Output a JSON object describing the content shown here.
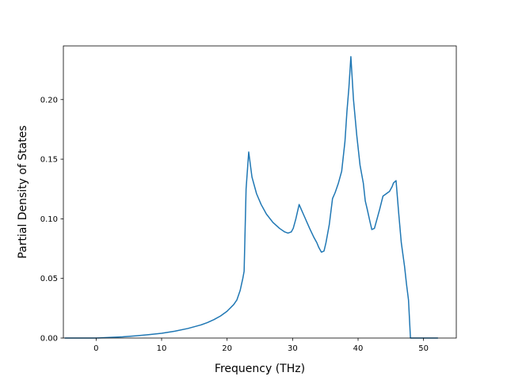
{
  "chart_data": {
    "type": "line",
    "xlabel": "Frequency (THz)",
    "ylabel": "Partial Density of States",
    "xlim": [
      -5,
      55
    ],
    "ylim": [
      0,
      0.245
    ],
    "xticks": [
      0,
      10,
      20,
      30,
      40,
      50
    ],
    "yticks": [
      0.0,
      0.05,
      0.1,
      0.15,
      0.2
    ],
    "xtick_labels": [
      "0",
      "10",
      "20",
      "30",
      "40",
      "50"
    ],
    "ytick_labels": [
      "0.00",
      "0.05",
      "0.10",
      "0.15",
      "0.20"
    ],
    "grid": false,
    "legend": "none",
    "series": [
      {
        "color": "#1f77b4",
        "x": [
          -4.8,
          0,
          2,
          4,
          6,
          8,
          10,
          12,
          14,
          15,
          16,
          17,
          18,
          19,
          20,
          21,
          21.5,
          22.0,
          22.2,
          22.4,
          22.6,
          22.9,
          23.3,
          23.8,
          24.5,
          25.2,
          26,
          27,
          28,
          28.8,
          29.3,
          29.8,
          30.1,
          30.5,
          31,
          31.8,
          32.6,
          33.2,
          33.7,
          34.0,
          34.4,
          34.8,
          35.1,
          35.6,
          36.1,
          36.5,
          37.0,
          37.5,
          38.0,
          38.3,
          38.6,
          38.9,
          39.3,
          39.8,
          40.3,
          40.8,
          41.1,
          41.4,
          41.8,
          42.1,
          42.5,
          42.9,
          43.3,
          43.8,
          44.3,
          44.8,
          45.2,
          45.4,
          45.8,
          46.2,
          46.6,
          47.1,
          47.4,
          47.7,
          48.0,
          52.2
        ],
        "y": [
          0,
          0,
          0.0005,
          0.001,
          0.0018,
          0.0028,
          0.004,
          0.0057,
          0.008,
          0.0095,
          0.011,
          0.013,
          0.0155,
          0.0185,
          0.0225,
          0.028,
          0.032,
          0.04,
          0.045,
          0.05,
          0.056,
          0.125,
          0.156,
          0.135,
          0.121,
          0.112,
          0.104,
          0.097,
          0.092,
          0.089,
          0.088,
          0.089,
          0.092,
          0.1,
          0.112,
          0.102,
          0.092,
          0.085,
          0.08,
          0.076,
          0.072,
          0.073,
          0.08,
          0.095,
          0.117,
          0.122,
          0.13,
          0.14,
          0.165,
          0.19,
          0.21,
          0.236,
          0.2,
          0.17,
          0.145,
          0.13,
          0.115,
          0.108,
          0.098,
          0.091,
          0.092,
          0.1,
          0.108,
          0.119,
          0.121,
          0.123,
          0.127,
          0.13,
          0.132,
          0.105,
          0.08,
          0.06,
          0.045,
          0.032,
          0.0,
          0.0
        ]
      }
    ]
  }
}
